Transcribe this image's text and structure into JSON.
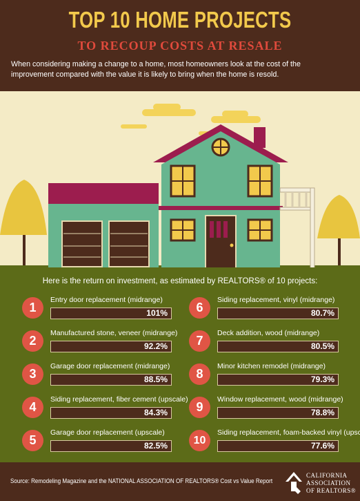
{
  "header": {
    "title": "TOP 10 HOME PROJECTS",
    "subtitle": "TO RECOUP COSTS AT RESALE",
    "intro": "When considering making a change to a home, most homeowners look at the cost of the improvement compared with the value it is likely to bring when the home is resold."
  },
  "results": {
    "heading": "Here is the return on investment, as estimated by REALTORS® of 10 projects:",
    "projects": [
      {
        "rank": "1",
        "name": "Entry door replacement (midrange)",
        "roi": "101%"
      },
      {
        "rank": "2",
        "name": "Manufactured stone, veneer (midrange)",
        "roi": "92.2%"
      },
      {
        "rank": "3",
        "name": "Garage door replacement (midrange)",
        "roi": "88.5%"
      },
      {
        "rank": "4",
        "name": "Siding replacement, fiber cement (upscale)",
        "roi": "84.3%"
      },
      {
        "rank": "5",
        "name": "Garage door replacement (upscale)",
        "roi": "82.5%"
      },
      {
        "rank": "6",
        "name": "Siding replacement, vinyl (midrange)",
        "roi": "80.7%"
      },
      {
        "rank": "7",
        "name": "Deck addition, wood (midrange)",
        "roi": "80.5%"
      },
      {
        "rank": "8",
        "name": "Minor kitchen remodel (midrange)",
        "roi": "79.3%"
      },
      {
        "rank": "9",
        "name": "Window replacement, wood (midrange)",
        "roi": "78.8%"
      },
      {
        "rank": "10",
        "name": "Siding replacement, foam-backed vinyl (upscale)",
        "roi": "77.6%"
      }
    ]
  },
  "footer": {
    "source": "Source: Remodeling Magazine and the NATIONAL ASSOCIATION OF REALTORS® Cost vs Value Report",
    "logo_line1": "CALIFORNIA",
    "logo_line2": "ASSOCIATION",
    "logo_line3": "OF REALTORS®"
  },
  "colors": {
    "brown": "#4d2b1c",
    "gold": "#f2c94c",
    "red": "#e05545",
    "olive": "#5c6b18",
    "cream": "#f4ebc6",
    "house_green": "#67b58f",
    "roof_magenta": "#9c1d4e"
  }
}
